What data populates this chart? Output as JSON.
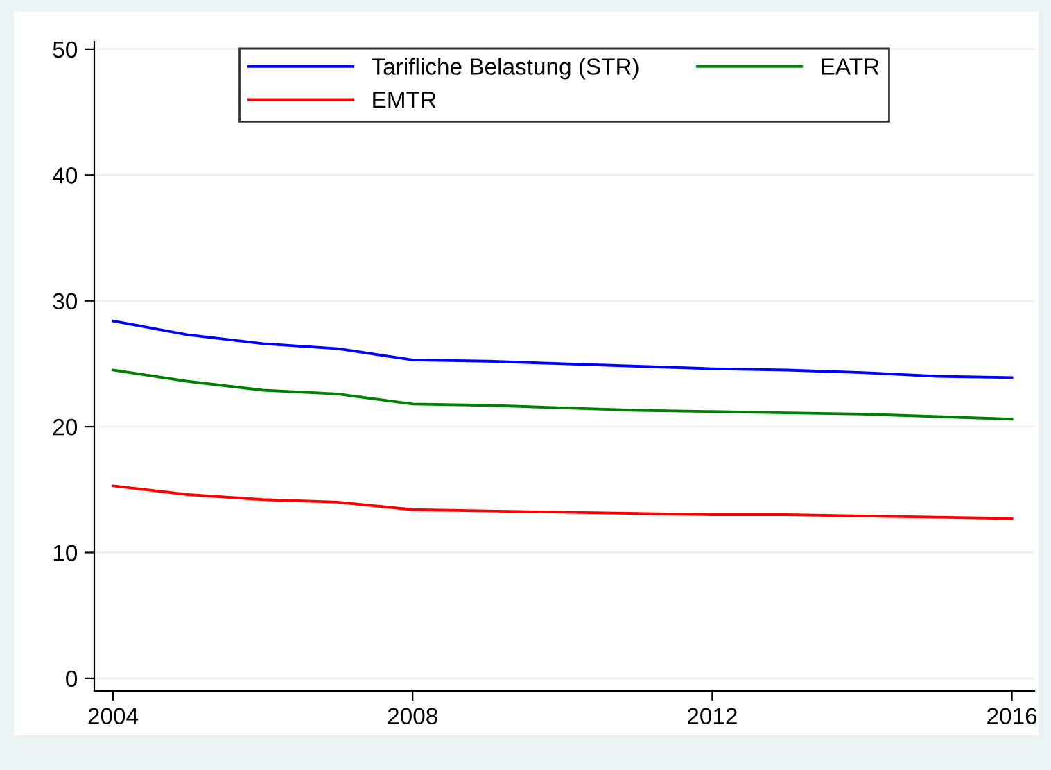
{
  "chart_data": {
    "type": "line",
    "x": [
      2004,
      2005,
      2006,
      2007,
      2008,
      2009,
      2010,
      2011,
      2012,
      2013,
      2014,
      2015,
      2016
    ],
    "series": [
      {
        "name": "Tarifliche Belastung (STR)",
        "color": "#0000ff",
        "values": [
          28.4,
          27.3,
          26.6,
          26.2,
          25.3,
          25.2,
          25.0,
          24.8,
          24.6,
          24.5,
          24.3,
          24.0,
          23.9
        ]
      },
      {
        "name": "EATR",
        "color": "#008000",
        "values": [
          24.5,
          23.6,
          22.9,
          22.6,
          21.8,
          21.7,
          21.5,
          21.3,
          21.2,
          21.1,
          21.0,
          20.8,
          20.6
        ]
      },
      {
        "name": "EMTR",
        "color": "#ff0000",
        "values": [
          15.3,
          14.6,
          14.2,
          14.0,
          13.4,
          13.3,
          13.2,
          13.1,
          13.0,
          13.0,
          12.9,
          12.8,
          12.7
        ]
      }
    ],
    "xlim": [
      2003.75,
      2016.3
    ],
    "xticks": [
      2004,
      2008,
      2012,
      2016
    ],
    "ylim": [
      -1,
      50.6
    ],
    "yticks": [
      0,
      10,
      20,
      30,
      40,
      50
    ],
    "grid": "y",
    "legend": "top",
    "marker": "none",
    "line_style": "solid"
  }
}
